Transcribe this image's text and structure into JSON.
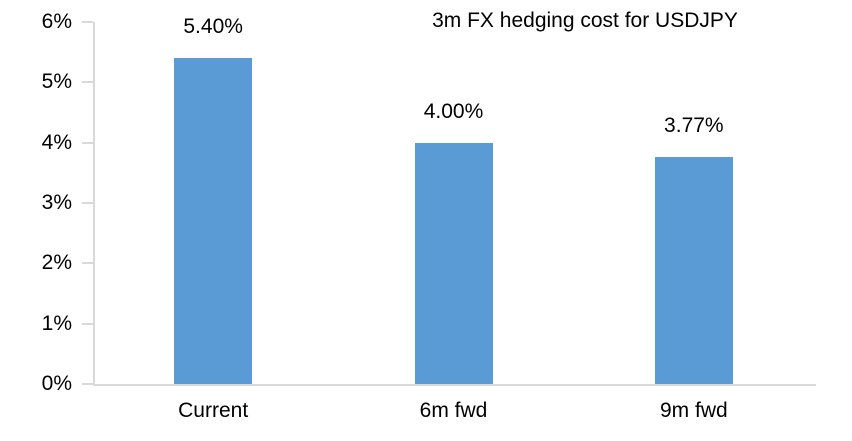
{
  "chart_data": {
    "type": "bar",
    "title": "3m FX hedging cost for USDJPY",
    "categories": [
      "Current",
      "6m fwd",
      "9m fwd"
    ],
    "values": [
      5.4,
      4.0,
      3.77
    ],
    "value_labels": [
      "5.40%",
      "4.00%",
      "3.77%"
    ],
    "xlabel": "",
    "ylabel": "",
    "ylim": [
      0,
      6
    ],
    "y_tick_step": 1,
    "y_tick_labels": [
      "0%",
      "1%",
      "2%",
      "3%",
      "4%",
      "5%",
      "6%"
    ],
    "grid": "off",
    "legend": "none",
    "bar_color": "#5b9bd5",
    "axis_color": "#d9d9d9",
    "text_color": "#000000"
  }
}
